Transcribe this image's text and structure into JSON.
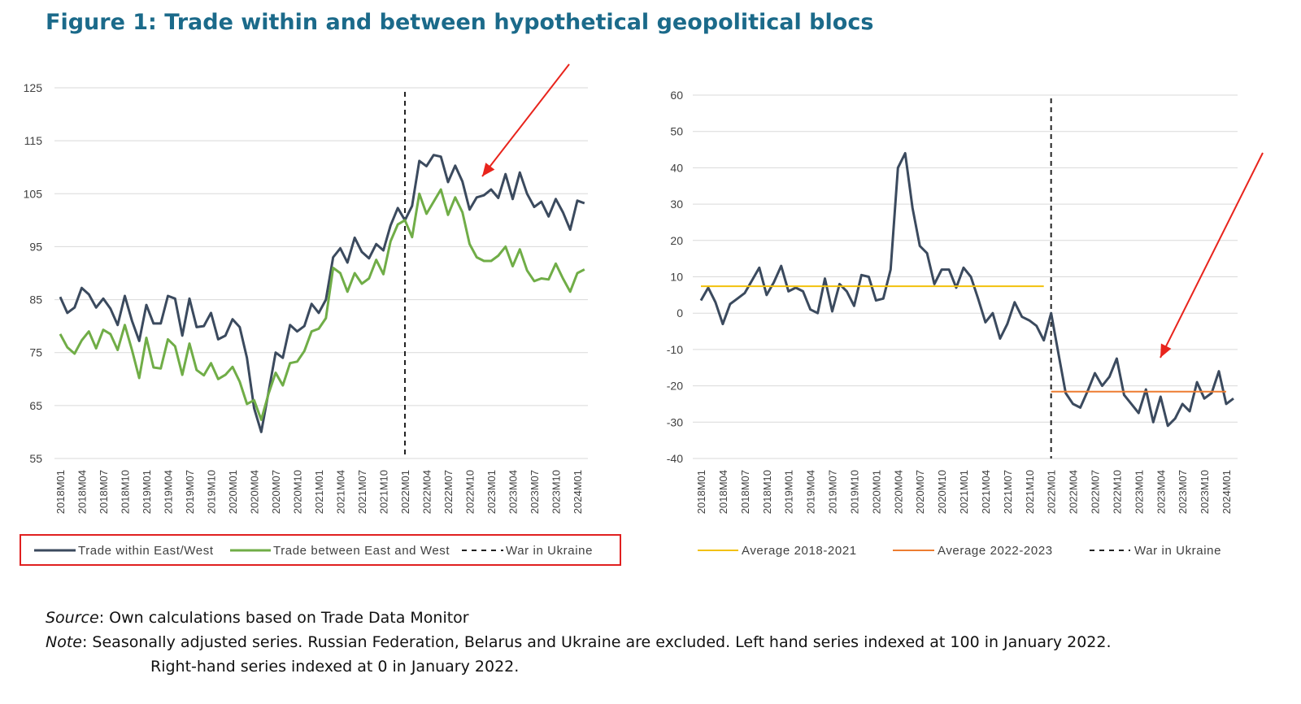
{
  "figure_title": "Figure 1: Trade within and between hypothetical geopolitical blocs",
  "source": {
    "label": "Source",
    "text": ": Own calculations based on Trade Data Monitor"
  },
  "note": {
    "label": "Note",
    "text": ": Seasonally adjusted series. Russian Federation, Belarus and Ukraine are excluded. Left hand series indexed at 100 in January 2022.",
    "text2": "Right-hand series indexed at 0 in January 2022."
  },
  "colors": {
    "navy": "#3b4a5e",
    "green": "#70ad47",
    "yellow": "#f2c10c",
    "orange": "#ed7d31",
    "arrow": "#e8241c",
    "legend_box": "#e02020",
    "grid": "#d9d9d9",
    "axis_text": "#404040"
  },
  "chart_data": [
    {
      "type": "line",
      "title": "",
      "xlabel": "",
      "ylabel": "",
      "ylim": [
        55,
        125
      ],
      "y_ticks": [
        55,
        65,
        75,
        85,
        95,
        105,
        115,
        125
      ],
      "x_tick_labels": [
        "2018M01",
        "2018M04",
        "2018M07",
        "2018M10",
        "2019M01",
        "2019M04",
        "2019M07",
        "2019M10",
        "2020M01",
        "2020M04",
        "2020M07",
        "2020M10",
        "2021M01",
        "2021M04",
        "2021M07",
        "2021M10",
        "2022M01",
        "2022M04",
        "2022M07",
        "2022M10",
        "2023M01",
        "2023M04",
        "2023M07",
        "2023M10",
        "2024M01"
      ],
      "grid": true,
      "legend": "bottom",
      "series": [
        {
          "name": "Trade within East/West",
          "color": "#3b4a5e",
          "values": [
            85.5,
            82.5,
            83.5,
            87.2,
            86,
            83.5,
            85.2,
            83.3,
            80.2,
            85.7,
            81,
            77.2,
            84,
            80.5,
            80.5,
            85.7,
            85.2,
            78.2,
            85.2,
            79.8,
            80,
            82.5,
            77.5,
            78.2,
            81.3,
            79.8,
            74,
            64.5,
            60,
            67.5,
            75,
            74,
            80.2,
            79,
            80,
            84.2,
            82.5,
            85,
            93,
            94.7,
            92,
            96.7,
            94,
            92.8,
            95.5,
            94.3,
            99,
            102.3,
            100,
            102.7,
            111.2,
            110.2,
            112.3,
            112,
            107.2,
            110.3,
            107.3,
            102,
            104.3,
            104.7,
            105.8,
            104.2,
            108.7,
            104,
            109,
            105,
            102.5,
            103.5,
            100.7,
            104,
            101.5,
            98.2,
            103.7,
            103.2
          ]
        },
        {
          "name": "Trade between East and West",
          "color": "#70ad47",
          "values": [
            78.5,
            76,
            74.8,
            77.3,
            79,
            75.8,
            79.3,
            78.5,
            75.5,
            80.2,
            75.5,
            70.2,
            77.8,
            72.2,
            72,
            77.5,
            76.2,
            70.8,
            76.7,
            71.7,
            70.7,
            73,
            70,
            70.8,
            72.3,
            69.5,
            65.3,
            66,
            62.3,
            67.2,
            71.2,
            68.8,
            73,
            73.3,
            75.3,
            79,
            79.5,
            81.5,
            91,
            90,
            86.5,
            90,
            88,
            89,
            92.5,
            89.8,
            96,
            99.2,
            100,
            96.8,
            105,
            101.2,
            103.5,
            105.8,
            101,
            104.3,
            101.5,
            95.5,
            93,
            92.3,
            92.3,
            93.3,
            95,
            91.3,
            94.5,
            90.5,
            88.5,
            89,
            88.8,
            91.8,
            89,
            86.5,
            90,
            90.7
          ]
        }
      ],
      "marker": {
        "name": "War in Ukraine",
        "at": "2022M01"
      }
    },
    {
      "type": "line",
      "title": "",
      "xlabel": "",
      "ylabel": "",
      "ylim": [
        -40,
        60
      ],
      "y_ticks": [
        -40,
        -30,
        -20,
        -10,
        0,
        10,
        20,
        30,
        40,
        50,
        60
      ],
      "x_tick_labels": [
        "2018M01",
        "2018M04",
        "2018M07",
        "2018M10",
        "2019M01",
        "2019M04",
        "2019M07",
        "2019M10",
        "2020M01",
        "2020M04",
        "2020M07",
        "2020M10",
        "2021M01",
        "2021M04",
        "2021M07",
        "2021M10",
        "2022M01",
        "2022M04",
        "2022M07",
        "2022M10",
        "2023M01",
        "2023M04",
        "2023M07",
        "2023M10",
        "2024M01"
      ],
      "grid": true,
      "legend": "bottom",
      "series": [
        {
          "name": "",
          "color": "#3b4a5e",
          "values": [
            3.5,
            7,
            3,
            -3,
            2.5,
            4,
            5.5,
            9,
            12.5,
            5,
            8.5,
            13,
            6,
            7,
            6,
            1,
            0,
            9.5,
            0.5,
            8,
            6,
            2,
            10.5,
            10,
            3.5,
            4,
            12,
            40,
            44,
            29,
            18.5,
            16.5,
            8,
            12,
            12,
            7,
            12.5,
            10,
            4,
            -2.5,
            0,
            -7,
            -3,
            3,
            -1,
            -2,
            -3.5,
            -7.5,
            0,
            -11,
            -22,
            -25,
            -26,
            -21.5,
            -16.5,
            -20,
            -17.5,
            -12.5,
            -22.5,
            -25,
            -27.5,
            -21,
            -30,
            -23,
            -31,
            -29,
            -25,
            -27,
            -19,
            -23.5,
            -22,
            -16,
            -25,
            -23.5
          ]
        },
        {
          "name": "Average 2018-2021",
          "color": "#f2c10c",
          "value": 7.4,
          "from": "2018M01",
          "to": "2021M12"
        },
        {
          "name": "Average 2022-2023",
          "color": "#ed7d31",
          "value": -21.6,
          "from": "2022M01",
          "to": "2024M01"
        }
      ],
      "marker": {
        "name": "War in Ukraine",
        "at": "2022M01"
      }
    }
  ]
}
